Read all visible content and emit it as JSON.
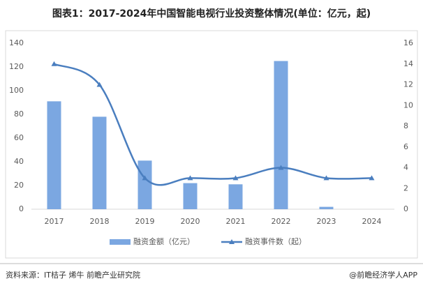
{
  "chart_data": {
    "type": "bar-line",
    "title": "图表1：2017-2024年中国智能电视行业投资整体情况(单位：亿元，起)",
    "categories": [
      "2017",
      "2018",
      "2019",
      "2020",
      "2021",
      "2022",
      "2023",
      "2024"
    ],
    "series": [
      {
        "name": "融资金额（亿元）",
        "color": "#7ba7e1",
        "type": "bar",
        "values": [
          91,
          78,
          41,
          22,
          21,
          125,
          2,
          0
        ]
      },
      {
        "name": "融资事件数（起）",
        "color": "#4a7ebf",
        "type": "line",
        "axis": "y2",
        "values": [
          14,
          12,
          3,
          3,
          3,
          4,
          3,
          3
        ]
      }
    ],
    "ylim": [
      0,
      140
    ],
    "yticks": [
      0,
      20,
      40,
      60,
      80,
      100,
      120,
      140
    ],
    "y2lim": [
      0,
      16
    ],
    "y2ticks": [
      0,
      2,
      4,
      6,
      8,
      10,
      12,
      14,
      16
    ],
    "legend": "bottom",
    "source": "资料来源：IT桔子 烯牛 前瞻产业研究院",
    "credit": "@前瞻经济学人APP"
  }
}
